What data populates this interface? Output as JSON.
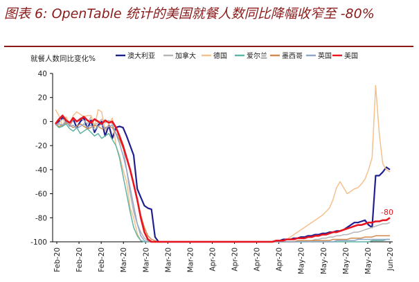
{
  "header": {
    "title": "图表 6: OpenTable 统计的美国就餐人数同比降幅收窄至 -80%"
  },
  "chart_data": {
    "type": "line",
    "ylabel": "就餐人数同比变化%",
    "ylim": [
      -100,
      40
    ],
    "yticks": [
      -100,
      -80,
      -60,
      -40,
      -20,
      0,
      20,
      40
    ],
    "x_tick_labels": [
      "Feb-20",
      "Feb-20",
      "Feb-20",
      "Mar-20",
      "Mar-20",
      "Mar-20",
      "Mar-20",
      "Apr-20",
      "Apr-20",
      "Apr-20",
      "Apr-20",
      "May-20",
      "May-20",
      "May-20",
      "May-20",
      "Jun-20"
    ],
    "annotation": "-80",
    "colors": {
      "axis": "#000000",
      "title": "#8b1a1a"
    },
    "series": [
      {
        "name": "澳大利亚",
        "color": "#1f1f8f",
        "values": [
          -2,
          0,
          3,
          0,
          -3,
          2,
          -5,
          0,
          3,
          -6,
          1,
          -9,
          -3,
          0,
          -12,
          -3,
          -14,
          -5,
          -4,
          -5,
          -12,
          -20,
          -28,
          -56,
          -63,
          -70,
          -72,
          -73,
          -96,
          -100,
          -100,
          -100,
          -100,
          -100,
          -100,
          -100,
          -100,
          -100,
          -100,
          -100,
          -100,
          -100,
          -100,
          -100,
          -100,
          -100,
          -100,
          -100,
          -100,
          -100,
          -100,
          -100,
          -100,
          -100,
          -100,
          -100,
          -100,
          -100,
          -100,
          -100,
          -100,
          -100,
          -99,
          -99,
          -98,
          -98,
          -98,
          -97,
          -97,
          -96,
          -96,
          -95,
          -95,
          -94,
          -94,
          -93,
          -93,
          -92,
          -92,
          -91,
          -91,
          -90,
          -88,
          -86,
          -84,
          -84,
          -83,
          -82,
          -86,
          -88,
          -45,
          -45,
          -42,
          -38,
          -40
        ]
      },
      {
        "name": "加拿大",
        "color": "#b5b5b5",
        "values": [
          -3,
          -1,
          2,
          1,
          -3,
          2,
          0,
          3,
          1,
          -2,
          4,
          -3,
          -1,
          2,
          -1,
          1,
          -2,
          -10,
          -12,
          -20,
          -40,
          -60,
          -75,
          -85,
          -92,
          -97,
          -99,
          -100,
          -100,
          -100,
          -100,
          -100,
          -100,
          -100,
          -100,
          -100,
          -100,
          -100,
          -100,
          -100,
          -100,
          -100,
          -100,
          -100,
          -100,
          -100,
          -100,
          -100,
          -100,
          -100,
          -100,
          -100,
          -100,
          -100,
          -100,
          -100,
          -100,
          -100,
          -100,
          -100,
          -100,
          -100,
          -100,
          -100,
          -100,
          -100,
          -100,
          -100,
          -100,
          -100,
          -100,
          -99,
          -99,
          -98,
          -98,
          -97,
          -97,
          -96,
          -96,
          -95,
          -95,
          -94,
          -94,
          -93,
          -92,
          -92,
          -91,
          -90,
          -89,
          -88,
          -87,
          -86,
          -85,
          -85,
          -84
        ]
      },
      {
        "name": "德国",
        "color": "#f4c08c",
        "values": [
          10,
          5,
          -4,
          4,
          -3,
          5,
          8,
          6,
          4,
          5,
          5,
          -5,
          10,
          8,
          -8,
          -2,
          3,
          -20,
          -28,
          -40,
          -50,
          -72,
          -80,
          -93,
          -99,
          -100,
          -100,
          -100,
          -100,
          -100,
          -100,
          -100,
          -100,
          -100,
          -100,
          -100,
          -100,
          -100,
          -100,
          -100,
          -100,
          -100,
          -100,
          -100,
          -100,
          -100,
          -100,
          -100,
          -100,
          -100,
          -100,
          -100,
          -100,
          -100,
          -100,
          -100,
          -100,
          -100,
          -100,
          -100,
          -100,
          -100,
          -100,
          -100,
          -99,
          -98,
          -96,
          -94,
          -92,
          -90,
          -88,
          -86,
          -84,
          -82,
          -80,
          -78,
          -75,
          -72,
          -65,
          -55,
          -50,
          -55,
          -60,
          -58,
          -56,
          -55,
          -52,
          -48,
          -40,
          -30,
          30,
          -10,
          -35,
          -40,
          -42
        ]
      },
      {
        "name": "爱尔兰",
        "color": "#5fb3a3",
        "values": [
          -2,
          -5,
          -4,
          -2,
          -6,
          -8,
          -5,
          -10,
          -8,
          -6,
          -9,
          -12,
          -10,
          -14,
          -12,
          -10,
          -15,
          -20,
          -30,
          -45,
          -60,
          -75,
          -88,
          -95,
          -99,
          -100,
          -100,
          -100,
          -100,
          -100,
          -100,
          -100,
          -100,
          -100,
          -100,
          -100,
          -100,
          -100,
          -100,
          -100,
          -100,
          -100,
          -100,
          -100,
          -100,
          -100,
          -100,
          -100,
          -100,
          -100,
          -100,
          -100,
          -100,
          -100,
          -100,
          -100,
          -100,
          -100,
          -100,
          -100,
          -100,
          -100,
          -100,
          -100,
          -100,
          -100,
          -100,
          -100,
          -100,
          -100,
          -100,
          -100,
          -100,
          -100,
          -100,
          -100,
          -100,
          -100,
          -100,
          -100,
          -100,
          -100,
          -100,
          -100,
          -100,
          -100,
          -100,
          -100,
          -100,
          -99,
          -99,
          -99,
          -99,
          -98,
          -98
        ]
      },
      {
        "name": "墨西哥",
        "color": "#d08a4e",
        "values": [
          -2,
          -4,
          -3,
          -1,
          -3,
          -5,
          -4,
          -2,
          -4,
          -6,
          -5,
          -3,
          -4,
          -6,
          -5,
          -4,
          -5,
          -10,
          -15,
          -22,
          -30,
          -40,
          -52,
          -65,
          -78,
          -88,
          -95,
          -98,
          -99,
          -100,
          -100,
          -100,
          -100,
          -100,
          -100,
          -100,
          -100,
          -100,
          -100,
          -100,
          -100,
          -100,
          -100,
          -100,
          -100,
          -100,
          -100,
          -100,
          -100,
          -100,
          -100,
          -100,
          -100,
          -100,
          -100,
          -100,
          -100,
          -100,
          -100,
          -100,
          -100,
          -100,
          -100,
          -100,
          -100,
          -100,
          -100,
          -100,
          -99,
          -99,
          -99,
          -99,
          -99,
          -99,
          -99,
          -99,
          -99,
          -99,
          -98,
          -98,
          -98,
          -98,
          -98,
          -97,
          -97,
          -97,
          -97,
          -96,
          -96,
          -96,
          -95,
          -95,
          -95,
          -95,
          -95
        ]
      },
      {
        "name": "英国",
        "color": "#8ea6c8",
        "values": [
          -3,
          -2,
          -3,
          0,
          -4,
          -3,
          -6,
          -4,
          -2,
          -5,
          -3,
          -7,
          -4,
          -2,
          -6,
          -4,
          -3,
          -10,
          -18,
          -28,
          -40,
          -55,
          -70,
          -85,
          -95,
          -99,
          -100,
          -100,
          -100,
          -100,
          -100,
          -100,
          -100,
          -100,
          -100,
          -100,
          -100,
          -100,
          -100,
          -100,
          -100,
          -100,
          -100,
          -100,
          -100,
          -100,
          -100,
          -100,
          -100,
          -100,
          -100,
          -100,
          -100,
          -100,
          -100,
          -100,
          -100,
          -100,
          -100,
          -100,
          -100,
          -100,
          -100,
          -100,
          -100,
          -100,
          -100,
          -100,
          -100,
          -100,
          -100,
          -100,
          -100,
          -100,
          -100,
          -100,
          -100,
          -100,
          -100,
          -99,
          -99,
          -99,
          -99,
          -99,
          -99,
          -98,
          -98,
          -98,
          -98,
          -98,
          -98,
          -98,
          -98,
          -98,
          -98
        ]
      },
      {
        "name": "美国",
        "color": "#e8141e",
        "values": [
          -2,
          2,
          5,
          1,
          -1,
          3,
          0,
          2,
          4,
          1,
          -1,
          2,
          0,
          -2,
          1,
          -1,
          0,
          -5,
          -12,
          -20,
          -30,
          -40,
          -52,
          -65,
          -80,
          -92,
          -98,
          -100,
          -100,
          -100,
          -100,
          -100,
          -100,
          -100,
          -100,
          -100,
          -100,
          -100,
          -100,
          -100,
          -100,
          -100,
          -100,
          -100,
          -100,
          -100,
          -100,
          -100,
          -100,
          -100,
          -100,
          -100,
          -100,
          -100,
          -100,
          -100,
          -100,
          -100,
          -100,
          -100,
          -100,
          -100,
          -99,
          -99,
          -99,
          -98,
          -98,
          -98,
          -97,
          -97,
          -97,
          -96,
          -96,
          -95,
          -95,
          -94,
          -94,
          -93,
          -92,
          -92,
          -91,
          -90,
          -89,
          -88,
          -87,
          -86,
          -86,
          -85,
          -84,
          -84,
          -83,
          -83,
          -82,
          -82,
          -80
        ]
      }
    ]
  }
}
